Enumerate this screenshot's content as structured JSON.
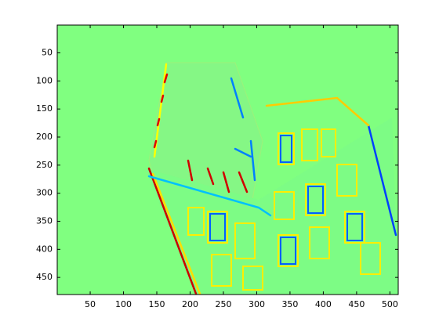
{
  "chart_data": {
    "type": "image",
    "colormap": "jet",
    "background_color": "#80ff80",
    "y_reversed": true,
    "xlim": [
      0.5,
      512.5
    ],
    "ylim": [
      0.5,
      480.5
    ],
    "xticks": [
      50,
      100,
      150,
      200,
      250,
      300,
      350,
      400,
      450,
      500
    ],
    "yticks": [
      50,
      100,
      150,
      200,
      250,
      300,
      350,
      400,
      450
    ]
  }
}
